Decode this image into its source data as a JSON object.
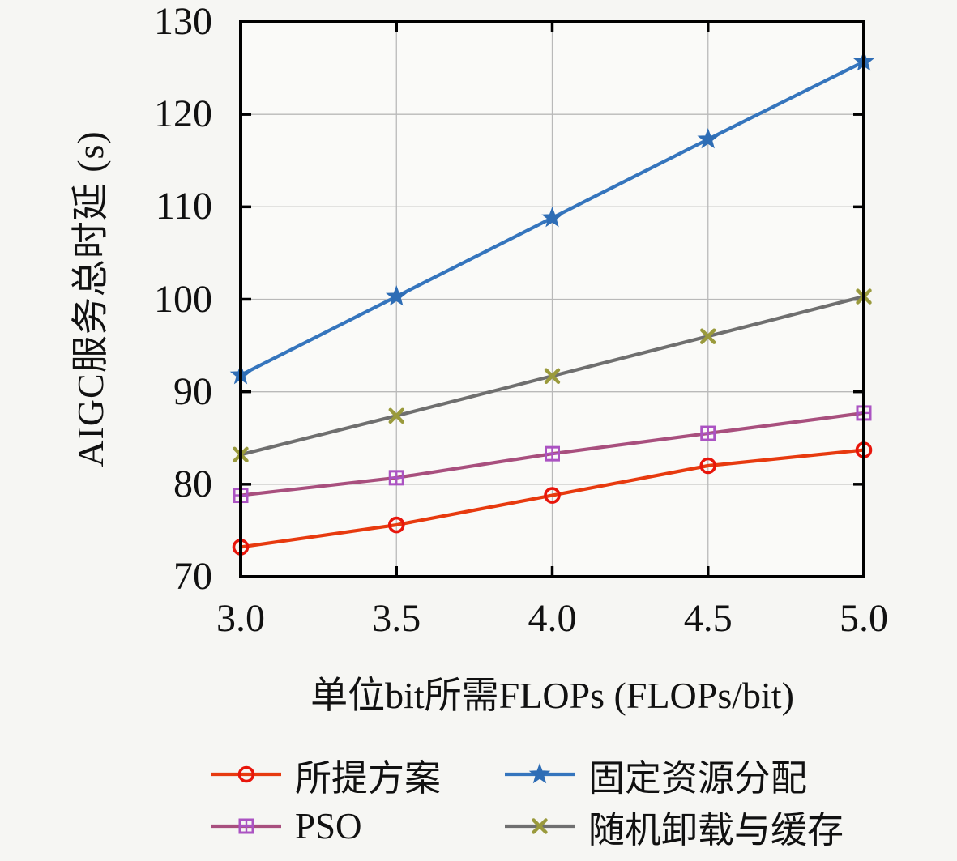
{
  "figure": {
    "background": "#f6f6f3",
    "plot_background": "#fafaf8",
    "grid_color": "#b9b9b9",
    "axis_color": "#000000"
  },
  "chart_data": {
    "type": "line",
    "title": "",
    "xlabel": "单位bit所需FLOPs (FLOPs/bit)",
    "ylabel": "AIGC服务总时延 (s)",
    "xlim": [
      3.0,
      5.0
    ],
    "ylim": [
      70,
      130
    ],
    "xticks": [
      3.0,
      3.5,
      4.0,
      4.5,
      5.0
    ],
    "xtick_labels": [
      "3.0",
      "3.5",
      "4.0",
      "4.5",
      "5.0"
    ],
    "yticks": [
      70,
      80,
      90,
      100,
      110,
      120,
      130
    ],
    "ytick_labels": [
      "70",
      "80",
      "90",
      "100",
      "110",
      "120",
      "130"
    ],
    "grid": true,
    "legend_position": "below",
    "x": [
      3.0,
      3.5,
      4.0,
      4.5,
      5.0
    ],
    "series": [
      {
        "name": "所提方案",
        "marker": "circle",
        "line_color": "#e73a0f",
        "marker_color": "#e8150b",
        "values": [
          73.2,
          75.6,
          78.8,
          82.0,
          83.7
        ]
      },
      {
        "name": "PSO",
        "marker": "square-plus",
        "line_color": "#a84f7e",
        "marker_color": "#ab53c2",
        "values": [
          78.8,
          80.7,
          83.3,
          85.5,
          87.7
        ]
      },
      {
        "name": "固定资源分配",
        "marker": "star",
        "line_color": "#3575bd",
        "marker_color": "#2e6db5",
        "values": [
          91.8,
          100.3,
          108.8,
          117.3,
          125.7
        ]
      },
      {
        "name": "随机卸载与缓存",
        "marker": "x-cross",
        "line_color": "#6f6f6f",
        "marker_color": "#9a9a3c",
        "values": [
          83.2,
          87.4,
          91.7,
          96.0,
          100.3
        ]
      }
    ],
    "legend_order": [
      0,
      2,
      1,
      3
    ]
  }
}
